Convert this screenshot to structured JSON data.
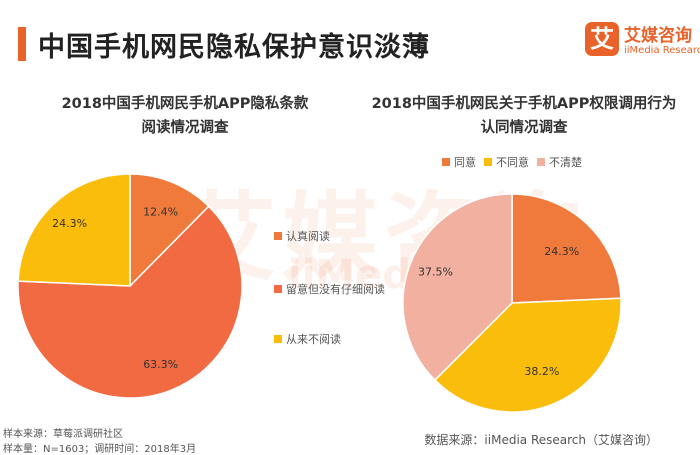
{
  "page": {
    "title": "中国手机网民隐私保护意识淡薄"
  },
  "logo": {
    "cn": "艾媒咨询",
    "en": "iiMedia Research",
    "mark": "艾"
  },
  "watermark": {
    "cn": "艾媒咨询",
    "en": "iiMedia"
  },
  "colors": {
    "orange": "#e8622a",
    "orange_mid": "#ef7a3b",
    "red_orange": "#f26a42",
    "yellow": "#fbbd0c",
    "pink": "#f2b0a0"
  },
  "chart_data": [
    {
      "type": "pie",
      "title_lines": [
        "2018中国手机网民手机APP隐私条款",
        "阅读情况调查"
      ],
      "categories": [
        "认真阅读",
        "留意但没有仔细阅读",
        "从来不阅读"
      ],
      "values": [
        12.4,
        63.3,
        24.3
      ],
      "value_labels": [
        "12.4%",
        "63.3%",
        "24.3%"
      ],
      "colors": [
        "#ef7a3b",
        "#f26a42",
        "#fbbd0c"
      ],
      "legend_position": "right"
    },
    {
      "type": "pie",
      "title_lines": [
        "2018中国手机网民关于手机APP权限调用行为",
        "认同情况调查"
      ],
      "categories": [
        "同意",
        "不同意",
        "不清楚"
      ],
      "values": [
        24.3,
        38.2,
        37.5
      ],
      "value_labels": [
        "24.3%",
        "38.2%",
        "37.5%"
      ],
      "colors": [
        "#ef7a3b",
        "#fbbd0c",
        "#f2b0a0"
      ],
      "legend_position": "top"
    }
  ],
  "footer": {
    "left_line1": "样本来源：草莓派调研社区",
    "left_line2": "样本量：N=1603；调研时间：2018年3月",
    "right": "数据来源：iiMedia Research（艾媒咨询）"
  }
}
